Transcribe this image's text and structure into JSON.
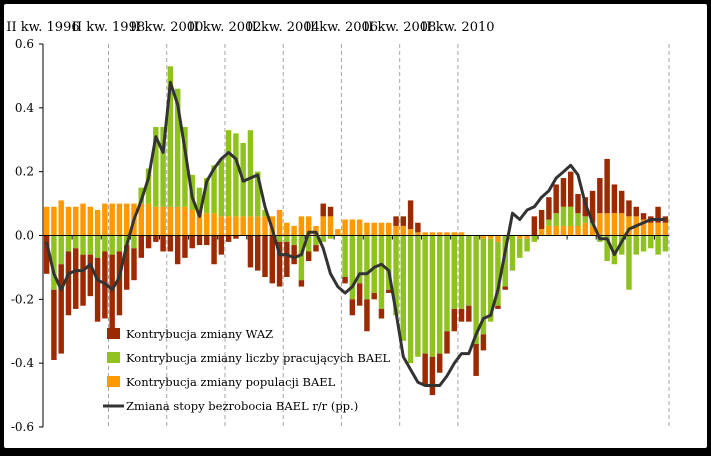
{
  "colors": {
    "background": "#ffffff",
    "frame": "#000000",
    "waz": "#9c2a00",
    "employment": "#8fc21e",
    "population": "#ff9900",
    "unemployment_line": "#333333",
    "grid": "#a6a6a6"
  },
  "chart_data": {
    "type": "bar",
    "subtype": "stacked bar with line overlay",
    "x_top_tick_labels": [
      "II kw. 1996",
      "II kw. 1998",
      "II kw. 2000",
      "II kw. 2002",
      "II kw. 2004",
      "II kw. 2006",
      "II kw. 2008",
      "II kw. 2010"
    ],
    "y_tick_labels": [
      "0.6",
      "0.4",
      "0.2",
      "0.0",
      "-0.2",
      "-0.4",
      "-0.6"
    ],
    "ylim": [
      -0.6,
      0.6
    ],
    "grid": "vertical dashed at top tick labels",
    "legend_position": "bottom-left",
    "legend": [
      "Kontrybucja zmiany WAZ",
      "Kontrybucja zmiany liczby pracujących BAEL",
      "Kontrybucja zmiany populacji BAEL",
      "Zmiana stopy bezrobocia BAEL r/r (pp.)"
    ],
    "series": [
      {
        "name": "Kontrybucja zmiany WAZ",
        "values": [
          -0.12,
          -0.22,
          -0.28,
          -0.2,
          -0.19,
          -0.16,
          -0.13,
          -0.2,
          -0.21,
          -0.26,
          -0.2,
          -0.14,
          -0.1,
          -0.07,
          -0.04,
          -0.02,
          -0.05,
          -0.05,
          -0.09,
          -0.07,
          -0.04,
          -0.03,
          -0.03,
          -0.09,
          -0.06,
          -0.02,
          -0.01,
          0.0,
          -0.1,
          -0.11,
          -0.13,
          -0.15,
          -0.14,
          -0.11,
          -0.06,
          -0.02,
          -0.03,
          -0.02,
          0.04,
          0.03,
          0.0,
          -0.02,
          -0.05,
          -0.07,
          -0.1,
          -0.02,
          -0.03,
          -0.01,
          0.03,
          0.03,
          0.09,
          0.03,
          -0.1,
          -0.12,
          -0.06,
          -0.07,
          -0.07,
          -0.04,
          -0.05,
          -0.1,
          -0.05,
          0.0,
          -0.01,
          -0.01,
          0.0,
          0.0,
          0.0,
          0.06,
          0.06,
          0.07,
          0.09,
          0.09,
          0.11,
          0.06,
          0.06,
          0.1,
          0.11,
          0.17,
          0.09,
          0.07,
          0.05,
          0.03,
          0.02,
          0.02,
          0.05,
          0.02
        ],
        "comment_values_note": ""
      },
      {
        "name": "Kontrybucja zmiany liczby pracujących BAEL",
        "values": [
          -0.0,
          -0.17,
          -0.09,
          -0.05,
          -0.04,
          -0.06,
          -0.06,
          -0.07,
          -0.05,
          -0.06,
          -0.05,
          -0.03,
          -0.04,
          0.05,
          0.11,
          0.25,
          0.25,
          0.44,
          0.37,
          0.25,
          0.11,
          0.07,
          0.11,
          0.15,
          0.18,
          0.27,
          0.26,
          0.23,
          0.27,
          0.14,
          0.02,
          0.0,
          -0.02,
          -0.02,
          -0.03,
          -0.14,
          -0.05,
          -0.03,
          -0.02,
          -0.01,
          -0.0,
          -0.13,
          -0.2,
          -0.15,
          -0.2,
          -0.18,
          -0.23,
          -0.17,
          -0.25,
          -0.33,
          -0.4,
          -0.38,
          -0.37,
          -0.38,
          -0.37,
          -0.3,
          -0.23,
          -0.23,
          -0.22,
          -0.34,
          -0.3,
          -0.26,
          -0.2,
          -0.16,
          -0.11,
          -0.06,
          -0.04,
          -0.02,
          0.0,
          0.02,
          0.04,
          0.06,
          0.06,
          0.04,
          0.02,
          0.01,
          -0.02,
          -0.08,
          -0.09,
          -0.06,
          -0.17,
          -0.06,
          -0.05,
          -0.04,
          -0.06,
          -0.05
        ]
      },
      {
        "name": "Kontrybucja zmiany populacji BAEL",
        "values": [
          0.09,
          0.09,
          0.11,
          0.09,
          0.09,
          0.1,
          0.09,
          0.08,
          0.1,
          0.1,
          0.1,
          0.1,
          0.1,
          0.1,
          0.1,
          0.09,
          0.09,
          0.09,
          0.09,
          0.09,
          0.08,
          0.08,
          0.07,
          0.07,
          0.06,
          0.06,
          0.06,
          0.06,
          0.06,
          0.06,
          0.06,
          0.06,
          0.08,
          0.04,
          0.03,
          0.06,
          0.06,
          0.03,
          0.06,
          0.06,
          0.02,
          0.05,
          0.05,
          0.05,
          0.04,
          0.04,
          0.04,
          0.04,
          0.03,
          0.03,
          0.02,
          0.01,
          0.01,
          0.01,
          0.01,
          0.01,
          0.01,
          0.01,
          0.0,
          0.0,
          -0.01,
          -0.01,
          -0.02,
          0.0,
          0.0,
          -0.01,
          -0.01,
          0.0,
          0.02,
          0.03,
          0.03,
          0.03,
          0.03,
          0.03,
          0.04,
          0.03,
          0.07,
          0.07,
          0.07,
          0.07,
          0.06,
          0.06,
          0.05,
          0.04,
          0.04,
          0.04
        ]
      },
      {
        "name": "Zmiana stopy bezrobocia BAEL r/r (pp.)",
        "values": [
          -0.02,
          -0.12,
          -0.17,
          -0.12,
          -0.11,
          -0.11,
          -0.09,
          -0.14,
          -0.15,
          -0.17,
          -0.13,
          -0.03,
          0.05,
          0.11,
          0.18,
          0.31,
          0.26,
          0.48,
          0.41,
          0.27,
          0.12,
          0.06,
          0.17,
          0.21,
          0.24,
          0.26,
          0.24,
          0.17,
          0.18,
          0.19,
          0.09,
          0.02,
          -0.06,
          -0.06,
          -0.07,
          -0.06,
          0.01,
          0.01,
          -0.04,
          -0.12,
          -0.16,
          -0.18,
          -0.16,
          -0.12,
          -0.12,
          -0.1,
          -0.09,
          -0.11,
          -0.24,
          -0.38,
          -0.42,
          -0.46,
          -0.47,
          -0.47,
          -0.47,
          -0.44,
          -0.4,
          -0.37,
          -0.37,
          -0.31,
          -0.26,
          -0.25,
          -0.17,
          -0.05,
          0.07,
          0.05,
          0.08,
          0.09,
          0.12,
          0.14,
          0.18,
          0.2,
          0.22,
          0.19,
          0.1,
          0.04,
          -0.01,
          -0.01,
          -0.06,
          -0.02,
          0.02,
          0.03,
          0.04,
          0.05,
          0.05,
          0.05
        ]
      }
    ]
  }
}
